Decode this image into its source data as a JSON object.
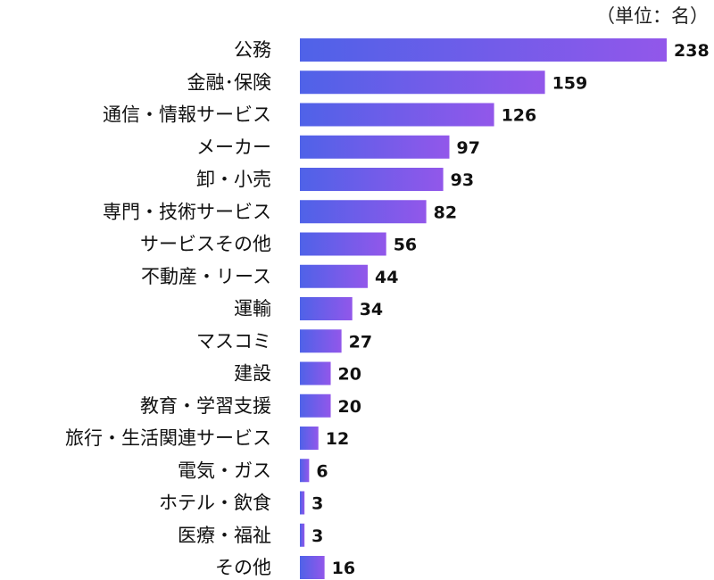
{
  "chart_data": {
    "type": "bar",
    "orientation": "horizontal",
    "unit_note": "（単位：名）",
    "categories": [
      "公務",
      "金融･保険",
      "通信・情報サービス",
      "メーカー",
      "卸・小売",
      "専門・技術サービス",
      "サービスその他",
      "不動産・リース",
      "運輸",
      "マスコミ",
      "建設",
      "教育・学習支援",
      "旅行・生活関連サービス",
      "電気・ガス",
      "ホテル・飲食",
      "医療・福祉",
      "その他"
    ],
    "values": [
      238,
      159,
      126,
      97,
      93,
      82,
      56,
      44,
      34,
      27,
      20,
      20,
      12,
      6,
      3,
      3,
      16
    ],
    "xlim": [
      0,
      238
    ],
    "grid": false,
    "legend": "none",
    "colors": {
      "bar_start": "#4f62e8",
      "bar_end": "#9257ea"
    }
  }
}
